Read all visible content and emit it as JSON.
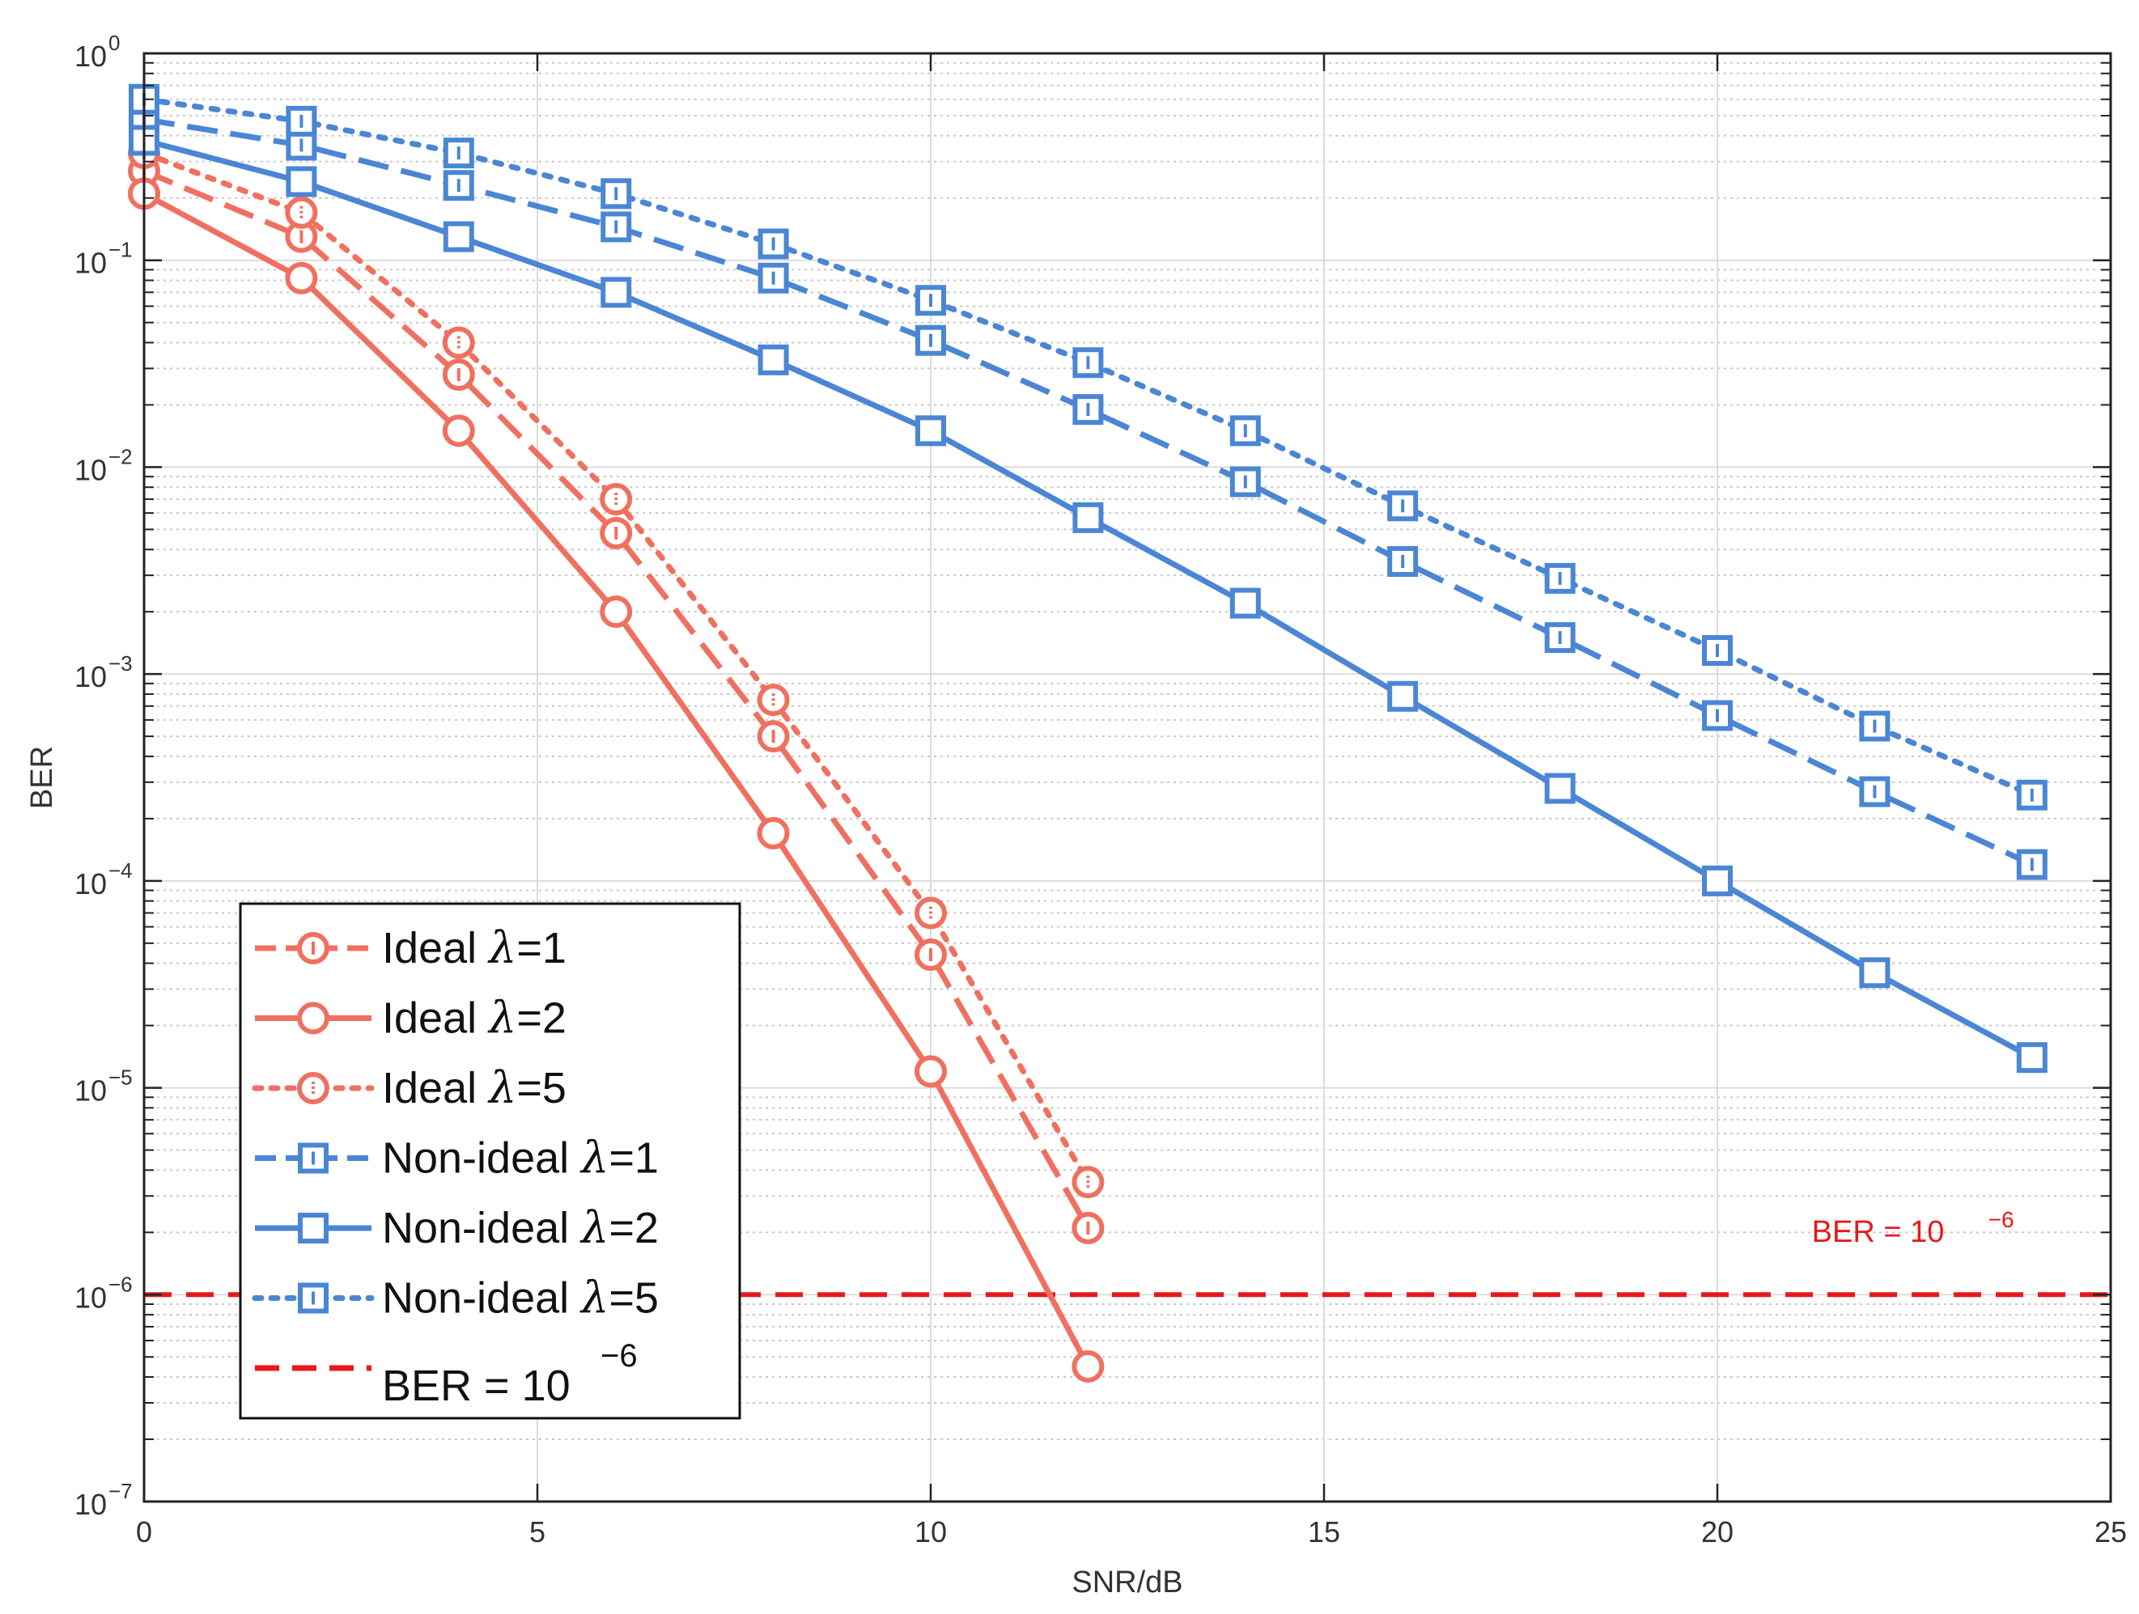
{
  "chart_data": {
    "type": "line",
    "title": "",
    "xlabel": "SNR/dB",
    "ylabel": "BER",
    "xlim": [
      0,
      25
    ],
    "ylim": [
      1e-07,
      1
    ],
    "yscale": "log",
    "grid": true,
    "x_ticks": [
      0,
      5,
      10,
      15,
      20,
      25
    ],
    "x_tick_labels": [
      "0",
      "5",
      "10",
      "15",
      "20",
      "25"
    ],
    "y_ticks": [
      {
        "value": 1,
        "base": "10",
        "exp": "0"
      },
      {
        "value": 0.1,
        "base": "10",
        "exp": "−1"
      },
      {
        "value": 0.01,
        "base": "10",
        "exp": "−2"
      },
      {
        "value": 0.001,
        "base": "10",
        "exp": "−3"
      },
      {
        "value": 0.0001,
        "base": "10",
        "exp": "−4"
      },
      {
        "value": 1e-05,
        "base": "10",
        "exp": "−5"
      },
      {
        "value": 1e-06,
        "base": "10",
        "exp": "−6"
      },
      {
        "value": 1e-07,
        "base": "10",
        "exp": "−7"
      }
    ],
    "series": [
      {
        "name": "Ideal λ=1",
        "label_prefix": "Ideal ",
        "lambda": "λ",
        "label_suffix": "=1",
        "color": "#F07060",
        "line_style": "dash",
        "marker": "circle",
        "x": [
          0,
          2,
          4,
          6,
          8,
          10,
          12
        ],
        "y": [
          0.27,
          0.13,
          0.028,
          0.0048,
          0.0005,
          4.4e-05,
          2.1e-06
        ]
      },
      {
        "name": "Ideal λ=2",
        "label_prefix": "Ideal ",
        "lambda": "λ",
        "label_suffix": "=2",
        "color": "#F07060",
        "line_style": "solid",
        "marker": "circle",
        "x": [
          0,
          2,
          4,
          6,
          8,
          10,
          12
        ],
        "y": [
          0.21,
          0.082,
          0.015,
          0.002,
          0.00017,
          1.2e-05,
          4.5e-07
        ]
      },
      {
        "name": "Ideal λ=5",
        "label_prefix": "Ideal ",
        "lambda": "λ",
        "label_suffix": "=5",
        "color": "#F07060",
        "line_style": "dot",
        "marker": "circle",
        "x": [
          0,
          2,
          4,
          6,
          8,
          10,
          12
        ],
        "y": [
          0.33,
          0.17,
          0.04,
          0.007,
          0.00075,
          7e-05,
          3.5e-06
        ]
      },
      {
        "name": "Non-ideal λ=1",
        "label_prefix": "Non-ideal ",
        "lambda": "λ",
        "label_suffix": "=1",
        "color": "#4A86D4",
        "line_style": "dash",
        "marker": "square",
        "x": [
          0,
          2,
          4,
          6,
          8,
          10,
          12,
          14,
          16,
          18,
          20,
          22,
          24
        ],
        "y": [
          0.48,
          0.36,
          0.23,
          0.145,
          0.082,
          0.041,
          0.019,
          0.0085,
          0.0035,
          0.0015,
          0.00063,
          0.00027,
          0.00012
        ]
      },
      {
        "name": "Non-ideal λ=2",
        "label_prefix": "Non-ideal ",
        "lambda": "λ",
        "label_suffix": "=2",
        "color": "#4A86D4",
        "line_style": "solid",
        "marker": "square",
        "x": [
          0,
          2,
          4,
          6,
          8,
          10,
          12,
          14,
          16,
          18,
          20,
          22,
          24
        ],
        "y": [
          0.38,
          0.24,
          0.13,
          0.07,
          0.033,
          0.015,
          0.0057,
          0.0022,
          0.00078,
          0.00028,
          0.0001,
          3.6e-05,
          1.4e-05
        ]
      },
      {
        "name": "Non-ideal λ=5",
        "label_prefix": "Non-ideal ",
        "lambda": "λ",
        "label_suffix": "=5",
        "color": "#4A86D4",
        "line_style": "dot",
        "marker": "square",
        "x": [
          0,
          2,
          4,
          6,
          8,
          10,
          12,
          14,
          16,
          18,
          20,
          22,
          24
        ],
        "y": [
          0.6,
          0.47,
          0.33,
          0.21,
          0.12,
          0.064,
          0.032,
          0.015,
          0.0065,
          0.0029,
          0.0013,
          0.00056,
          0.00026
        ]
      }
    ],
    "reference_line": {
      "name": "BER = 10^−6",
      "y": 1e-06,
      "color": "#E8191C",
      "line_style": "dash",
      "label_base": "BER = 10",
      "label_exp": "−6"
    },
    "legend": {
      "position": "bottom-left",
      "reference_label_base": "BER = 10",
      "reference_label_exp": "−6"
    },
    "annotations": [
      {
        "base": "BER = 10",
        "exp": "−6",
        "at_x": 21.2,
        "at_y": 1.8e-06
      }
    ]
  }
}
